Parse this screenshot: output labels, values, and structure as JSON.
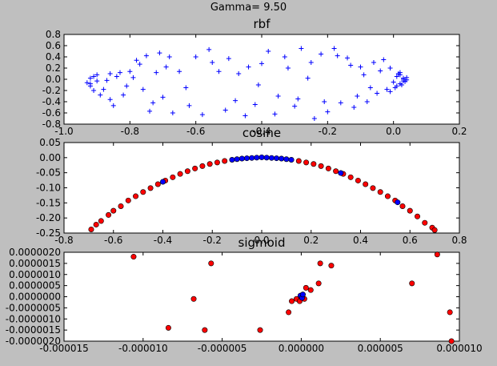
{
  "figure": {
    "suptitle": "Gamma= 9.50",
    "background": "#bfbfbf"
  },
  "chart_data": [
    {
      "type": "scatter",
      "title": "rbf",
      "xlabel": "",
      "ylabel": "",
      "xlim": [
        -1.0,
        0.2
      ],
      "ylim": [
        -0.8,
        0.8
      ],
      "xticks": [
        "-1.0",
        "-0.8",
        "-0.6",
        "-0.4",
        "-0.2",
        "0.0",
        "0.2"
      ],
      "yticks": [
        "0.8",
        "0.6",
        "0.4",
        "0.2",
        "0.0",
        "-0.2",
        "-0.4",
        "-0.6",
        "-0.8"
      ],
      "grid": false,
      "marker": "plus",
      "series": [
        {
          "color": "#0000ff",
          "points": [
            [
              -0.93,
              -0.06
            ],
            [
              -0.92,
              0.02
            ],
            [
              -0.92,
              -0.12
            ],
            [
              -0.91,
              0.05
            ],
            [
              -0.91,
              -0.2
            ],
            [
              -0.9,
              -0.03
            ],
            [
              -0.9,
              0.08
            ],
            [
              -0.89,
              -0.28
            ],
            [
              -0.87,
              -0.02
            ],
            [
              -0.86,
              0.1
            ],
            [
              -0.86,
              -0.36
            ],
            [
              -0.85,
              -0.47
            ],
            [
              -0.83,
              0.12
            ],
            [
              -0.82,
              -0.28
            ],
            [
              -0.8,
              0.14
            ],
            [
              -0.79,
              0.03
            ],
            [
              -0.78,
              0.34
            ],
            [
              -0.77,
              0.27
            ],
            [
              -0.76,
              -0.18
            ],
            [
              -0.75,
              0.42
            ],
            [
              -0.74,
              -0.57
            ],
            [
              -0.72,
              0.12
            ],
            [
              -0.71,
              0.47
            ],
            [
              -0.7,
              -0.32
            ],
            [
              -0.68,
              0.4
            ],
            [
              -0.67,
              -0.6
            ],
            [
              -0.65,
              0.14
            ],
            [
              -0.62,
              -0.47
            ],
            [
              -0.6,
              0.4
            ],
            [
              -0.58,
              -0.63
            ],
            [
              -0.56,
              0.53
            ],
            [
              -0.53,
              0.14
            ],
            [
              -0.51,
              -0.55
            ],
            [
              -0.5,
              0.37
            ],
            [
              -0.47,
              0.1
            ],
            [
              -0.45,
              -0.65
            ],
            [
              -0.42,
              -0.45
            ],
            [
              -0.4,
              0.28
            ],
            [
              -0.38,
              0.5
            ],
            [
              -0.36,
              -0.62
            ],
            [
              -0.33,
              0.4
            ],
            [
              -0.3,
              -0.48
            ],
            [
              -0.28,
              0.55
            ],
            [
              -0.26,
              0.02
            ],
            [
              -0.24,
              -0.7
            ],
            [
              -0.22,
              0.45
            ],
            [
              -0.2,
              -0.58
            ],
            [
              -0.18,
              0.55
            ],
            [
              -0.16,
              -0.42
            ],
            [
              -0.14,
              0.38
            ],
            [
              -0.12,
              -0.5
            ],
            [
              -0.1,
              0.22
            ],
            [
              -0.08,
              -0.4
            ],
            [
              -0.06,
              0.3
            ],
            [
              -0.05,
              -0.25
            ],
            [
              -0.03,
              0.35
            ],
            [
              -0.02,
              -0.18
            ],
            [
              -0.01,
              0.2
            ],
            [
              0.0,
              -0.05
            ],
            [
              0.01,
              0.05
            ],
            [
              0.01,
              -0.12
            ],
            [
              0.02,
              0.12
            ],
            [
              0.02,
              -0.08
            ],
            [
              0.03,
              0.02
            ],
            [
              0.03,
              -0.03
            ],
            [
              0.04,
              -0.01
            ],
            [
              0.04,
              0.03
            ],
            [
              0.02,
              0.08
            ],
            [
              -0.01,
              -0.22
            ],
            [
              -0.04,
              0.15
            ],
            [
              -0.07,
              -0.15
            ],
            [
              -0.09,
              0.08
            ],
            [
              -0.11,
              -0.3
            ],
            [
              -0.13,
              0.25
            ],
            [
              -0.17,
              0.42
            ],
            [
              -0.21,
              -0.4
            ],
            [
              -0.25,
              0.3
            ],
            [
              -0.29,
              -0.35
            ],
            [
              -0.32,
              0.2
            ],
            [
              -0.35,
              -0.3
            ],
            [
              -0.41,
              -0.1
            ],
            [
              -0.44,
              0.22
            ],
            [
              -0.48,
              -0.38
            ],
            [
              -0.55,
              0.3
            ],
            [
              -0.63,
              -0.15
            ],
            [
              -0.69,
              0.22
            ],
            [
              -0.73,
              -0.42
            ],
            [
              -0.81,
              -0.12
            ],
            [
              -0.84,
              0.05
            ],
            [
              -0.88,
              -0.18
            ],
            [
              -0.92,
              -0.08
            ],
            [
              0.03,
              0.0
            ],
            [
              0.035,
              -0.04
            ],
            [
              0.025,
              -0.1
            ],
            [
              0.015,
              0.1
            ],
            [
              0.005,
              -0.15
            ]
          ]
        }
      ]
    },
    {
      "type": "scatter",
      "title": "cosine",
      "xlabel": "",
      "ylabel": "",
      "xlim": [
        -0.8,
        0.8
      ],
      "ylim": [
        -0.25,
        0.05
      ],
      "xticks": [
        "-0.8",
        "-0.6",
        "-0.4",
        "-0.2",
        "0.0",
        "0.2",
        "0.4",
        "0.6",
        "0.8"
      ],
      "yticks": [
        "0.05",
        "0.00",
        "-0.05",
        "-0.10",
        "-0.15",
        "-0.20",
        "-0.25"
      ],
      "grid": false,
      "marker": "circle",
      "series": [
        {
          "color": "#ff0000",
          "points": [
            [
              -0.69,
              -0.238
            ],
            [
              -0.67,
              -0.222
            ],
            [
              -0.65,
              -0.21
            ],
            [
              -0.62,
              -0.19
            ],
            [
              -0.6,
              -0.176
            ],
            [
              -0.57,
              -0.161
            ],
            [
              -0.54,
              -0.142
            ],
            [
              -0.51,
              -0.128
            ],
            [
              -0.48,
              -0.114
            ],
            [
              -0.45,
              -0.101
            ],
            [
              -0.42,
              -0.088
            ],
            [
              -0.39,
              -0.076
            ],
            [
              -0.36,
              -0.065
            ],
            [
              -0.33,
              -0.054
            ],
            [
              -0.3,
              -0.045
            ],
            [
              -0.27,
              -0.036
            ],
            [
              -0.24,
              -0.028
            ],
            [
              -0.21,
              -0.021
            ],
            [
              -0.18,
              -0.016
            ],
            [
              -0.15,
              -0.011
            ],
            [
              0.15,
              -0.011
            ],
            [
              0.18,
              -0.016
            ],
            [
              0.21,
              -0.021
            ],
            [
              0.24,
              -0.028
            ],
            [
              0.27,
              -0.036
            ],
            [
              0.3,
              -0.045
            ],
            [
              0.33,
              -0.054
            ],
            [
              0.36,
              -0.065
            ],
            [
              0.39,
              -0.076
            ],
            [
              0.42,
              -0.088
            ],
            [
              0.45,
              -0.101
            ],
            [
              0.48,
              -0.114
            ],
            [
              0.51,
              -0.128
            ],
            [
              0.54,
              -0.142
            ],
            [
              0.57,
              -0.161
            ],
            [
              0.6,
              -0.176
            ],
            [
              0.63,
              -0.195
            ],
            [
              0.66,
              -0.216
            ],
            [
              0.69,
              -0.232
            ],
            [
              0.7,
              -0.24
            ]
          ]
        },
        {
          "color": "#0000ff",
          "points": [
            [
              -0.12,
              -0.007
            ],
            [
              -0.1,
              -0.005
            ],
            [
              -0.08,
              -0.003
            ],
            [
              -0.06,
              -0.002
            ],
            [
              -0.04,
              -0.001
            ],
            [
              -0.02,
              0.0
            ],
            [
              0.0,
              0.001
            ],
            [
              0.02,
              0.0
            ],
            [
              0.04,
              -0.001
            ],
            [
              0.06,
              -0.002
            ],
            [
              0.08,
              -0.003
            ],
            [
              0.1,
              -0.005
            ],
            [
              0.12,
              -0.007
            ],
            [
              -0.4,
              -0.08
            ],
            [
              0.32,
              -0.051
            ],
            [
              0.55,
              -0.148
            ]
          ]
        }
      ]
    },
    {
      "type": "scatter",
      "title": "sigmoid",
      "xlabel": "",
      "ylabel": "",
      "xlim": [
        -1.5e-05,
        1e-05
      ],
      "ylim": [
        -2e-06,
        2e-06
      ],
      "xticks": [
        "-0.000015",
        "-0.000010",
        "-0.000005",
        "0.000000",
        "0.000005",
        "0.000010"
      ],
      "yticks": [
        "0.0000020",
        "0.0000015",
        "0.0000010",
        "0.0000005",
        "0.0000000",
        "-0.0000005",
        "-0.0000010",
        "-0.0000015",
        "-0.0000020"
      ],
      "grid": false,
      "marker": "circle",
      "series": [
        {
          "color": "#ff0000",
          "points": [
            [
              -1.06e-05,
              1.8e-06
            ],
            [
              -8.4e-06,
              -1.4e-06
            ],
            [
              -6.8e-06,
              -1e-07
            ],
            [
              -6.1e-06,
              -1.5e-06
            ],
            [
              -5.7e-06,
              1.5e-06
            ],
            [
              -2.6e-06,
              -1.5e-06
            ],
            [
              -8e-07,
              -7e-07
            ],
            [
              -6e-07,
              -2e-07
            ],
            [
              -3e-07,
              -1e-07
            ],
            [
              -1e-07,
              -2e-07
            ],
            [
              0.0,
              0.0
            ],
            [
              1e-07,
              1e-07
            ],
            [
              2e-07,
              -1e-07
            ],
            [
              3e-07,
              4e-07
            ],
            [
              6e-07,
              3e-07
            ],
            [
              1.1e-06,
              6e-07
            ],
            [
              1.2e-06,
              1.5e-06
            ],
            [
              1.9e-06,
              1.4e-06
            ],
            [
              7e-06,
              6e-07
            ],
            [
              8.6e-06,
              1.9e-06
            ],
            [
              9.4e-06,
              -7e-07
            ],
            [
              9.5e-06,
              -2e-06
            ]
          ]
        },
        {
          "color": "#0000ff",
          "points": [
            [
              -5e-08,
              5e-08
            ],
            [
              5e-08,
              -5e-08
            ],
            [
              1e-07,
              1e-07
            ]
          ]
        }
      ]
    }
  ]
}
